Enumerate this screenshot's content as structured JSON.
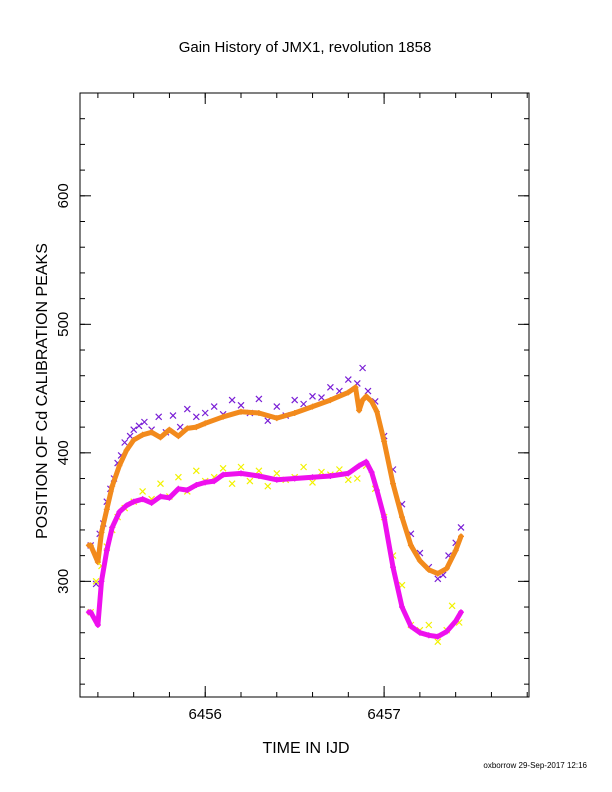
{
  "chart_data": {
    "type": "scatter",
    "title": "Gain History of JMX1, revolution 1858",
    "xlabel": "TIME IN IJD",
    "ylabel": "POSITION OF Cd CALIBRATION PEAKS",
    "xlim": [
      6455.3,
      6457.81
    ],
    "ylim": [
      210,
      680
    ],
    "x_ticks": [
      6456,
      6457
    ],
    "x_tick_labels": [
      "6456",
      "6457"
    ],
    "y_ticks": [
      300,
      400,
      500,
      600
    ],
    "y_tick_labels": [
      "300",
      "400",
      "500",
      "600"
    ],
    "grid": false,
    "legend": "none",
    "footer": "oxborrow 29-Sep-2017 12:16",
    "series": [
      {
        "marker": "x",
        "color": "#7a1fd6",
        "style": "scatter",
        "x": [
          6455.36,
          6455.39,
          6455.41,
          6455.43,
          6455.45,
          6455.47,
          6455.49,
          6455.51,
          6455.53,
          6455.55,
          6455.58,
          6455.6,
          6455.63,
          6455.66,
          6455.7,
          6455.74,
          6455.78,
          6455.82,
          6455.86,
          6455.9,
          6455.95,
          6456.0,
          6456.05,
          6456.1,
          6456.15,
          6456.2,
          6456.25,
          6456.3,
          6456.35,
          6456.4,
          6456.45,
          6456.5,
          6456.55,
          6456.6,
          6456.65,
          6456.7,
          6456.75,
          6456.8,
          6456.85,
          6456.88,
          6456.91,
          6456.95,
          6457.0,
          6457.05,
          6457.1,
          6457.15,
          6457.2,
          6457.25,
          6457.3,
          6457.33,
          6457.36,
          6457.4,
          6457.43
        ],
        "y": [
          328,
          298,
          337,
          345,
          362,
          372,
          380,
          392,
          398,
          408,
          413,
          418,
          421,
          424,
          418,
          428,
          416,
          429,
          420,
          434,
          428,
          431,
          436,
          430,
          441,
          437,
          431,
          442,
          425,
          436,
          429,
          441,
          438,
          444,
          443,
          451,
          448,
          457,
          454,
          466,
          448,
          440,
          413,
          387,
          360,
          337,
          322,
          311,
          302,
          305,
          320,
          330,
          342
        ]
      },
      {
        "marker": "+",
        "color": "#f28a1c",
        "style": "line",
        "x": [
          6455.35,
          6455.36,
          6455.4,
          6455.42,
          6455.45,
          6455.48,
          6455.52,
          6455.56,
          6455.6,
          6455.65,
          6455.7,
          6455.75,
          6455.8,
          6455.85,
          6455.9,
          6455.95,
          6456.0,
          6456.1,
          6456.2,
          6456.3,
          6456.4,
          6456.5,
          6456.6,
          6456.7,
          6456.8,
          6456.84,
          6456.86,
          6456.88,
          6456.9,
          6456.93,
          6456.96,
          6457.0,
          6457.05,
          6457.1,
          6457.15,
          6457.2,
          6457.25,
          6457.3,
          6457.35,
          6457.4,
          6457.43
        ],
        "y": [
          328,
          328,
          315,
          338,
          356,
          374,
          390,
          402,
          410,
          414,
          416,
          412,
          418,
          413,
          419,
          420,
          423,
          428,
          432,
          431,
          427,
          431,
          436,
          441,
          447,
          451,
          433,
          441,
          444,
          440,
          432,
          409,
          376,
          350,
          328,
          316,
          309,
          306,
          310,
          324,
          335
        ]
      },
      {
        "marker": "x",
        "color": "#f2f200",
        "style": "scatter",
        "x": [
          6455.36,
          6455.39,
          6455.42,
          6455.45,
          6455.48,
          6455.51,
          6455.55,
          6455.6,
          6455.65,
          6455.7,
          6455.75,
          6455.8,
          6455.85,
          6455.9,
          6455.95,
          6456.0,
          6456.05,
          6456.1,
          6456.15,
          6456.2,
          6456.25,
          6456.3,
          6456.35,
          6456.4,
          6456.45,
          6456.5,
          6456.55,
          6456.6,
          6456.65,
          6456.7,
          6456.75,
          6456.8,
          6456.85,
          6456.9,
          6456.95,
          6457.0,
          6457.05,
          6457.1,
          6457.15,
          6457.2,
          6457.25,
          6457.3,
          6457.35,
          6457.38,
          6457.42
        ],
        "y": [
          276,
          300,
          312,
          327,
          340,
          350,
          357,
          362,
          370,
          364,
          376,
          366,
          381,
          370,
          386,
          378,
          381,
          388,
          376,
          389,
          378,
          386,
          374,
          384,
          379,
          381,
          389,
          377,
          385,
          383,
          387,
          379,
          380,
          390,
          372,
          350,
          320,
          297,
          266,
          262,
          266,
          253,
          262,
          281,
          268
        ]
      },
      {
        "marker": "+",
        "color": "#ee10ee",
        "style": "line",
        "x": [
          6455.35,
          6455.36,
          6455.4,
          6455.42,
          6455.45,
          6455.48,
          6455.52,
          6455.56,
          6455.6,
          6455.65,
          6455.7,
          6455.75,
          6455.8,
          6455.85,
          6455.9,
          6455.95,
          6456.0,
          6456.05,
          6456.1,
          6456.2,
          6456.3,
          6456.4,
          6456.5,
          6456.6,
          6456.7,
          6456.8,
          6456.86,
          6456.9,
          6456.93,
          6456.96,
          6457.0,
          6457.05,
          6457.1,
          6457.15,
          6457.2,
          6457.25,
          6457.3,
          6457.35,
          6457.4,
          6457.43
        ],
        "y": [
          276,
          276,
          266,
          300,
          324,
          342,
          354,
          359,
          362,
          364,
          361,
          366,
          365,
          372,
          371,
          375,
          377,
          378,
          383,
          384,
          382,
          379,
          380,
          381,
          382,
          384,
          390,
          393,
          385,
          371,
          350,
          311,
          280,
          265,
          260,
          258,
          257,
          261,
          269,
          276
        ]
      }
    ]
  }
}
